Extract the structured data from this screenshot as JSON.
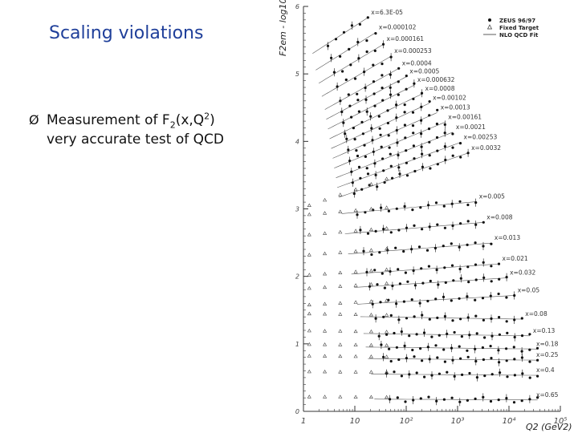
{
  "slide": {
    "title": "Scaling violations",
    "bullet_marker": "Ø",
    "bullet_line1_prefix": "Measurement of F",
    "bullet_sub": "2",
    "bullet_mid": "(x,Q",
    "bullet_sup": "2",
    "bullet_suffix": ")",
    "bullet_line2": "very accurate test of QCD"
  },
  "chart_data": {
    "type": "scatter",
    "ylabel": "F2em - log10 x",
    "xlabel": "Q2 (GeV2)",
    "xscale": "log",
    "xlim": [
      1,
      100000
    ],
    "ylim": [
      0,
      6
    ],
    "y_ticks": [
      "0",
      "1",
      "2",
      "3",
      "4",
      "5",
      "6"
    ],
    "x_ticks": [
      "1",
      "10",
      "10²",
      "10³",
      "10⁴",
      "10⁵"
    ],
    "legend": {
      "placement": "top-right",
      "entries": [
        "ZEUS 96/97",
        "Fixed Target",
        "NLO QCD Fit"
      ]
    },
    "x_bin_labels": [
      "x=6.3E-05",
      "x=0.000102",
      "x=0.000161",
      "x=0.000253",
      "x=0.0004",
      "x=0.0005",
      "x=0.000632",
      "x=0.0008",
      "x=0.00102",
      "x=0.0013",
      "x=0.00161",
      "x=0.0021",
      "x=0.00253",
      "x=0.0032",
      "x=0.005",
      "x=0.008",
      "x=0.013",
      "x=0.021",
      "x=0.032",
      "x=0.05",
      "x=0.08",
      "x=0.13",
      "x=0.18",
      "x=0.25",
      "x=0.4",
      "x=0.65"
    ],
    "colors": {
      "points": "#111111",
      "fit": "#555555",
      "axis": "#333333"
    }
  }
}
